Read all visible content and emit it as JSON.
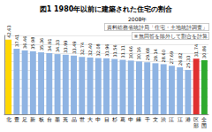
{
  "chart_data": {
    "type": "bar",
    "title": "図1 1980年以前に建築された住宅の割合",
    "subtitle": "2008年",
    "annotations": [
      "資料総務省統計局「住宅・土地統計調査」",
      "※無回答を除外して割合を計算"
    ],
    "categories": [
      "北",
      "豊",
      "足",
      "新",
      "板",
      "台",
      "墨",
      "荒",
      "品",
      "世",
      "大",
      "中",
      "目",
      "杉",
      "葛",
      "中",
      "練",
      "千",
      "文",
      "渋",
      "江",
      "江",
      "港",
      "区部",
      "全国"
    ],
    "values": [
      42.63,
      37.41,
      36.46,
      35.98,
      35.36,
      34.91,
      34.33,
      33.99,
      33.49,
      32.74,
      32.4,
      32.08,
      31.96,
      31.56,
      31.11,
      30.66,
      30.16,
      29.68,
      29.14,
      28.6,
      27.69,
      26.82,
      25.33,
      31.74,
      30.86
    ],
    "value_labels": [
      "42.63",
      "37.41",
      "36.46",
      "35.98",
      "35.36",
      "34.91",
      "34.33",
      "33.99",
      "33.49",
      "32.74",
      "32.40",
      "32.08",
      "31.96",
      "31.56",
      "31.11",
      "30.66",
      "30.16",
      "29.68",
      "29.14",
      "28.60",
      "27.69",
      "26.82",
      "25.33",
      "31.74",
      "30.86"
    ],
    "colors": [
      "#ffd700",
      "#8fb4e3",
      "#8fb4e3",
      "#8fb4e3",
      "#8fb4e3",
      "#8fb4e3",
      "#8fb4e3",
      "#8fb4e3",
      "#8fb4e3",
      "#8fb4e3",
      "#8fb4e3",
      "#8fb4e3",
      "#8fb4e3",
      "#8fb4e3",
      "#8fb4e3",
      "#8fb4e3",
      "#8fb4e3",
      "#8fb4e3",
      "#8fb4e3",
      "#8fb4e3",
      "#8fb4e3",
      "#8fb4e3",
      "#8fb4e3",
      "#e03030",
      "#2eaa2e"
    ],
    "ylim": [
      0,
      45
    ],
    "yticks": [
      0,
      5,
      10,
      15,
      20,
      25,
      30,
      35,
      40,
      45
    ],
    "grid": true,
    "data_labels": true,
    "tick_labels": "x"
  }
}
